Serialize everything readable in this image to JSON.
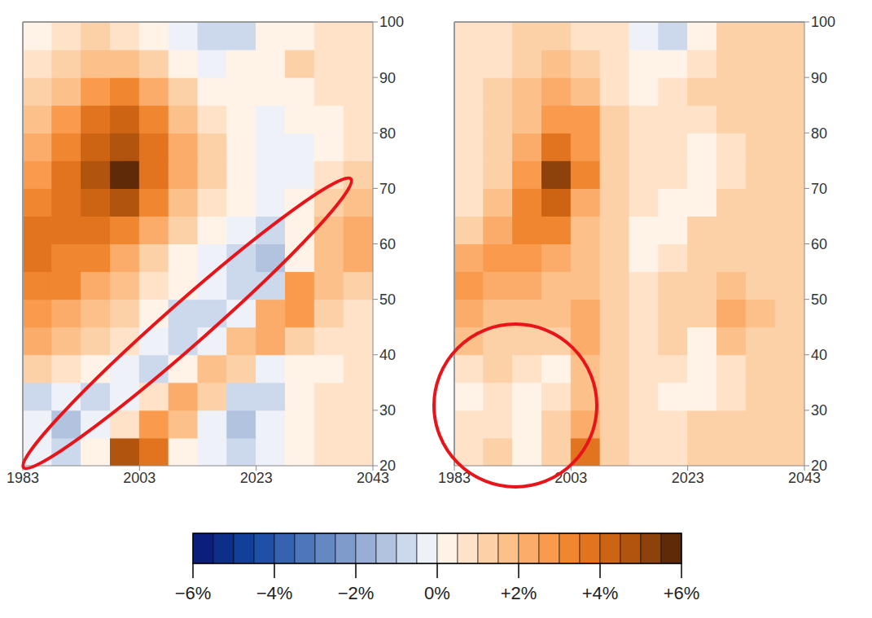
{
  "chart_data": [
    {
      "type": "heatmap",
      "xlim": [
        1983,
        2043
      ],
      "ylim": [
        20,
        100
      ],
      "xticks": [
        1983,
        2003,
        2023,
        2043
      ],
      "yticks": [
        20,
        30,
        40,
        50,
        60,
        70,
        80,
        90,
        100
      ],
      "x_bins": [
        1983,
        1988,
        1993,
        1998,
        2003,
        2008,
        2013,
        2018,
        2023,
        2028,
        2033,
        2038,
        2043
      ],
      "y_bins": [
        20,
        25,
        30,
        35,
        40,
        45,
        50,
        55,
        60,
        65,
        70,
        75,
        80,
        85,
        90,
        95,
        100
      ],
      "cells": [
        [
          -0.3,
          -1,
          0.3,
          4.5,
          3.5,
          0.3,
          -0.5,
          -1,
          -0.3,
          0.3,
          0.5,
          0.5
        ],
        [
          -0.5,
          -1.5,
          -0.5,
          0.5,
          2.5,
          1.5,
          -0.3,
          -1.5,
          -0.5,
          0.3,
          0.5,
          0.5
        ],
        [
          -1,
          -0.3,
          -1,
          -0.3,
          0.5,
          2,
          1,
          -1,
          -0.8,
          0.3,
          0.5,
          0.5
        ],
        [
          1,
          0.5,
          0,
          -0.5,
          -1,
          0,
          1.5,
          1,
          -0.5,
          0.3,
          0.3,
          0.5
        ],
        [
          2,
          1.5,
          1,
          0.5,
          -0.5,
          -1,
          -0.3,
          1.5,
          2,
          1,
          0.5,
          0.5
        ],
        [
          2.5,
          2,
          1.5,
          1,
          0.3,
          -0.8,
          -1,
          -0.3,
          2,
          2.5,
          1,
          0.5
        ],
        [
          3,
          3,
          2,
          1.5,
          0.5,
          0,
          -0.5,
          -1,
          -0.8,
          2.5,
          1.5,
          1
        ],
        [
          3.5,
          3,
          3,
          2,
          1,
          0.3,
          -0.3,
          -0.8,
          -1.5,
          0.3,
          1.5,
          2
        ],
        [
          3.5,
          3.5,
          3.5,
          3,
          2,
          1,
          0.3,
          -0.3,
          -0.8,
          0.3,
          1.5,
          2
        ],
        [
          3,
          3.5,
          4,
          4.5,
          3,
          1.5,
          0.5,
          0.3,
          -0.5,
          0.3,
          1,
          1.5
        ],
        [
          2.5,
          3.5,
          4.5,
          5.5,
          3.5,
          2,
          1,
          0.3,
          -0.3,
          -0.3,
          0.5,
          1
        ],
        [
          2,
          3,
          4,
          4.5,
          3.5,
          2,
          1,
          0.3,
          -0.5,
          -0.3,
          0.3,
          0.5
        ],
        [
          1.5,
          2.5,
          3.5,
          4,
          3,
          1.5,
          0.5,
          0.3,
          -0.3,
          0,
          0.3,
          0.5
        ],
        [
          1,
          1.5,
          2.5,
          3,
          2,
          1,
          0.3,
          0.2,
          0.3,
          0.3,
          0.5,
          0.5
        ],
        [
          0.5,
          1,
          1.5,
          1.5,
          1,
          0.3,
          -0.3,
          0.2,
          0.3,
          1,
          0.5,
          0.5
        ],
        [
          0.3,
          0.5,
          1,
          0.8,
          0.3,
          -0.3,
          -1,
          -0.8,
          0.3,
          0.3,
          0.5,
          0.5
        ]
      ]
    },
    {
      "type": "heatmap",
      "xlim": [
        1983,
        2043
      ],
      "ylim": [
        20,
        100
      ],
      "xticks": [
        1983,
        2003,
        2023,
        2043
      ],
      "yticks": [
        20,
        30,
        40,
        50,
        60,
        70,
        80,
        90,
        100
      ],
      "x_bins": [
        1983,
        1988,
        1993,
        1998,
        2003,
        2008,
        2013,
        2018,
        2023,
        2028,
        2033,
        2038,
        2043
      ],
      "y_bins": [
        20,
        25,
        30,
        35,
        40,
        45,
        50,
        55,
        60,
        65,
        70,
        75,
        80,
        85,
        90,
        95,
        100
      ],
      "cells": [
        [
          0.5,
          1,
          0.3,
          1,
          3.5,
          1,
          0.5,
          0.5,
          1,
          1,
          1,
          1
        ],
        [
          0.5,
          0.5,
          0.3,
          1,
          2,
          1,
          0.5,
          0.5,
          1,
          1,
          1,
          1
        ],
        [
          0.3,
          0.5,
          0.3,
          0.5,
          1.5,
          1,
          0.5,
          0.3,
          0.3,
          0.5,
          1,
          1
        ],
        [
          0.5,
          1,
          0.5,
          0.3,
          1.5,
          1,
          0.5,
          0.5,
          0,
          0.5,
          1,
          1
        ],
        [
          1.5,
          1,
          1,
          1,
          2,
          1,
          0.5,
          1,
          0.3,
          1.5,
          1,
          1
        ],
        [
          2,
          1.5,
          1.5,
          1.5,
          2,
          1,
          0.5,
          1,
          1,
          2,
          1.5,
          1
        ],
        [
          2.5,
          2,
          2,
          1.5,
          1.5,
          1,
          0.5,
          1,
          1,
          1.5,
          1,
          1
        ],
        [
          2,
          2.5,
          2.5,
          2,
          1.5,
          1,
          0.3,
          0.5,
          1,
          1,
          1,
          1
        ],
        [
          1,
          2,
          3,
          3,
          1.5,
          1,
          0.3,
          0.3,
          1,
          1,
          1,
          1
        ],
        [
          0.5,
          1.5,
          3,
          4,
          2,
          1,
          0.5,
          0.3,
          0.3,
          1,
          1,
          1
        ],
        [
          0.5,
          1,
          2.5,
          5,
          3,
          1,
          0.5,
          0.5,
          0,
          0.5,
          1,
          1
        ],
        [
          0.5,
          1,
          2,
          3.5,
          2.5,
          1,
          0.5,
          0.5,
          0.3,
          0.5,
          1,
          1
        ],
        [
          0.5,
          1,
          1.5,
          2.5,
          2.5,
          1,
          0.5,
          0.5,
          0.5,
          1,
          1,
          1
        ],
        [
          0.5,
          1,
          1.5,
          2,
          1.5,
          0.5,
          0.3,
          0.5,
          1,
          1,
          1,
          1
        ],
        [
          0.5,
          0.5,
          1,
          1.5,
          1,
          0.5,
          0.3,
          0.3,
          0.5,
          1,
          1,
          1
        ],
        [
          0.5,
          0.5,
          1,
          1,
          0.5,
          0.5,
          -0.3,
          -0.8,
          0.3,
          1,
          1,
          1
        ]
      ]
    }
  ],
  "colorbar": {
    "range": [
      -6,
      6
    ],
    "ticks": [
      {
        "value": -6,
        "label": "−6%"
      },
      {
        "value": -4,
        "label": "−4%"
      },
      {
        "value": -2,
        "label": "−2%"
      },
      {
        "value": 0,
        "label": "0%"
      },
      {
        "value": 2,
        "label": "+2%"
      },
      {
        "value": 4,
        "label": "+4%"
      },
      {
        "value": 6,
        "label": "+6%"
      }
    ],
    "colors": [
      "#0b1f7a",
      "#0d2f8a",
      "#123f9a",
      "#1f50a8",
      "#3563b0",
      "#4d77ba",
      "#6688c2",
      "#7f9bcb",
      "#98aed5",
      "#b2c3e0",
      "#ccd8ec",
      "#eef2f8",
      "#fff3e8",
      "#ffe2c8",
      "#fdd1a8",
      "#fcc08a",
      "#fbac6a",
      "#f99a4c",
      "#f08630",
      "#e27420",
      "#cc6414",
      "#b0540e",
      "#8c420a",
      "#5e2a08"
    ]
  }
}
